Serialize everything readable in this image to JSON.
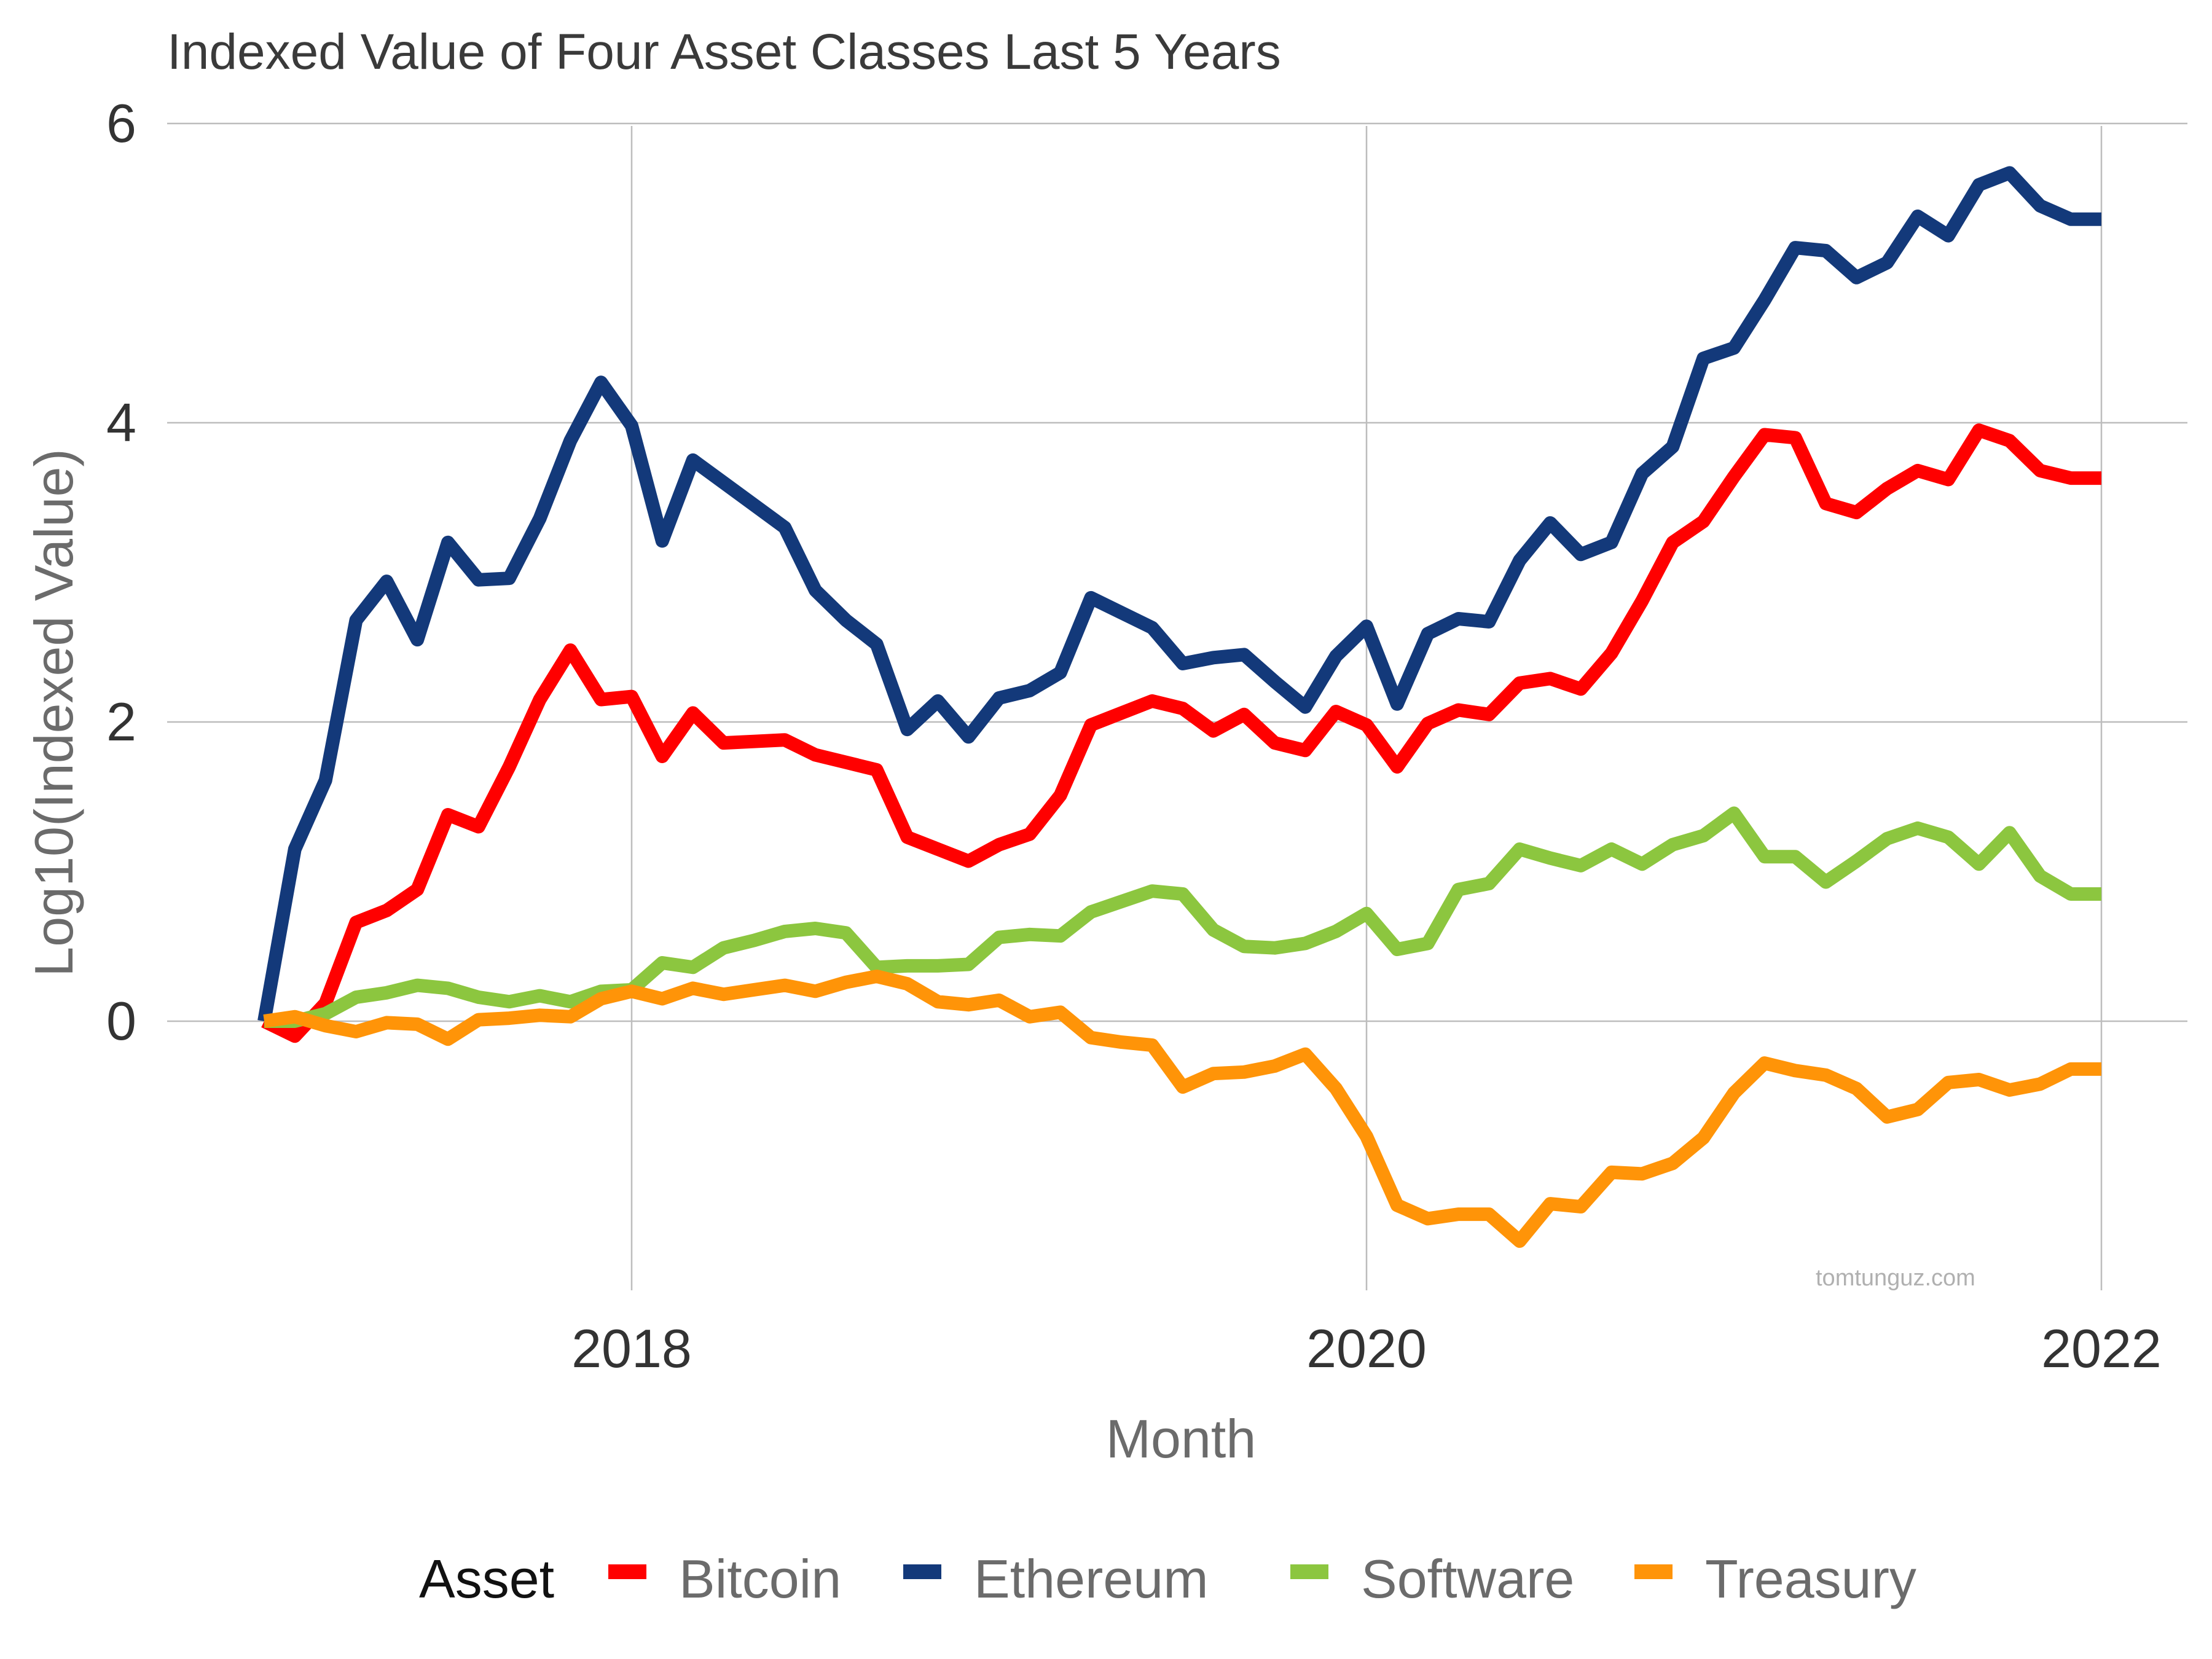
{
  "chart_data": {
    "type": "line",
    "title": "Indexed Value of Four Asset Classes Last 5 Years",
    "xlabel": "Month",
    "ylabel": "Log10(Indexed Value)",
    "x_ticks": [
      "2018",
      "2020",
      "2022"
    ],
    "y_ticks": [
      "0",
      "2",
      "4",
      "6"
    ],
    "ylim": [
      -1.7,
      6
    ],
    "xlim": [
      "2017-01",
      "2022-01"
    ],
    "grid": true,
    "legend": {
      "title": "Asset",
      "position": "bottom"
    },
    "watermark": "tomtunguz.com",
    "x": [
      "2017-01",
      "2017-02",
      "2017-03",
      "2017-04",
      "2017-05",
      "2017-06",
      "2017-07",
      "2017-08",
      "2017-09",
      "2017-10",
      "2017-11",
      "2017-12",
      "2018-01",
      "2018-02",
      "2018-03",
      "2018-04",
      "2018-05",
      "2018-06",
      "2018-07",
      "2018-08",
      "2018-09",
      "2018-10",
      "2018-11",
      "2018-12",
      "2019-01",
      "2019-02",
      "2019-03",
      "2019-04",
      "2019-05",
      "2019-06",
      "2019-07",
      "2019-08",
      "2019-09",
      "2019-10",
      "2019-11",
      "2019-12",
      "2020-01",
      "2020-02",
      "2020-03",
      "2020-04",
      "2020-05",
      "2020-06",
      "2020-07",
      "2020-08",
      "2020-09",
      "2020-10",
      "2020-11",
      "2020-12",
      "2021-01",
      "2021-02",
      "2021-03",
      "2021-04",
      "2021-05",
      "2021-06",
      "2021-07",
      "2021-08",
      "2021-09",
      "2021-10",
      "2021-11",
      "2021-12",
      "2022-01"
    ],
    "series": [
      {
        "name": "Bitcoin",
        "color": "#ff0000",
        "values": [
          0,
          -0.1,
          0.12,
          0.66,
          0.74,
          0.88,
          1.38,
          1.3,
          1.7,
          2.15,
          2.48,
          2.15,
          2.17,
          1.77,
          2.06,
          1.86,
          1.87,
          1.88,
          1.78,
          1.73,
          1.68,
          1.23,
          1.15,
          1.07,
          1.18,
          1.25,
          1.51,
          1.98,
          2.06,
          2.14,
          2.09,
          1.94,
          2.05,
          1.86,
          1.81,
          2.07,
          1.98,
          1.7,
          1.99,
          2.08,
          2.05,
          2.26,
          2.29,
          2.22,
          2.46,
          2.81,
          3.2,
          3.34,
          3.64,
          3.92,
          3.9,
          3.46,
          3.4,
          3.56,
          3.68,
          3.62,
          3.95,
          3.88,
          3.68,
          3.63,
          3.63
        ]
      },
      {
        "name": "Ethereum",
        "color": "#13397a",
        "values": [
          0,
          1.15,
          1.61,
          2.68,
          2.94,
          2.55,
          3.2,
          2.95,
          2.96,
          3.36,
          3.88,
          4.27,
          3.98,
          3.21,
          3.75,
          3.6,
          3.45,
          3.3,
          2.88,
          2.68,
          2.52,
          1.95,
          2.14,
          1.9,
          2.16,
          2.21,
          2.33,
          2.83,
          2.73,
          2.63,
          2.39,
          2.43,
          2.45,
          2.27,
          2.1,
          2.44,
          2.64,
          2.12,
          2.59,
          2.69,
          2.67,
          3.08,
          3.33,
          3.12,
          3.2,
          3.66,
          3.84,
          4.43,
          4.5,
          4.82,
          5.17,
          5.15,
          4.97,
          5.07,
          5.38,
          5.25,
          5.59,
          5.67,
          5.45,
          5.36,
          5.36
        ]
      },
      {
        "name": "Software",
        "color": "#8cc63f",
        "values": [
          0,
          0,
          0.05,
          0.16,
          0.19,
          0.24,
          0.22,
          0.16,
          0.13,
          0.17,
          0.13,
          0.2,
          0.21,
          0.39,
          0.36,
          0.49,
          0.54,
          0.6,
          0.62,
          0.59,
          0.36,
          0.37,
          0.37,
          0.38,
          0.56,
          0.58,
          0.57,
          0.73,
          0.8,
          0.87,
          0.85,
          0.61,
          0.5,
          0.49,
          0.52,
          0.6,
          0.72,
          0.48,
          0.52,
          0.88,
          0.92,
          1.15,
          1.09,
          1.04,
          1.15,
          1.05,
          1.18,
          1.24,
          1.39,
          1.1,
          1.1,
          0.93,
          1.07,
          1.22,
          1.29,
          1.23,
          1.05,
          1.26,
          0.97,
          0.85,
          0.85
        ]
      },
      {
        "name": "Treasury",
        "color": "#ff9408",
        "values": [
          0,
          0.03,
          -0.03,
          -0.07,
          -0.01,
          -0.02,
          -0.12,
          0.01,
          0.02,
          0.04,
          0.03,
          0.15,
          0.2,
          0.15,
          0.22,
          0.18,
          0.21,
          0.24,
          0.2,
          0.26,
          0.3,
          0.25,
          0.13,
          0.11,
          0.14,
          0.03,
          0.06,
          -0.11,
          -0.14,
          -0.16,
          -0.44,
          -0.35,
          -0.34,
          -0.3,
          -0.22,
          -0.45,
          -0.77,
          -1.23,
          -1.32,
          -1.29,
          -1.29,
          -1.47,
          -1.22,
          -1.24,
          -1.01,
          -1.02,
          -0.95,
          -0.78,
          -0.48,
          -0.28,
          -0.33,
          -0.36,
          -0.45,
          -0.64,
          -0.59,
          -0.41,
          -0.39,
          -0.46,
          -0.42,
          -0.32,
          -0.32
        ]
      }
    ]
  }
}
